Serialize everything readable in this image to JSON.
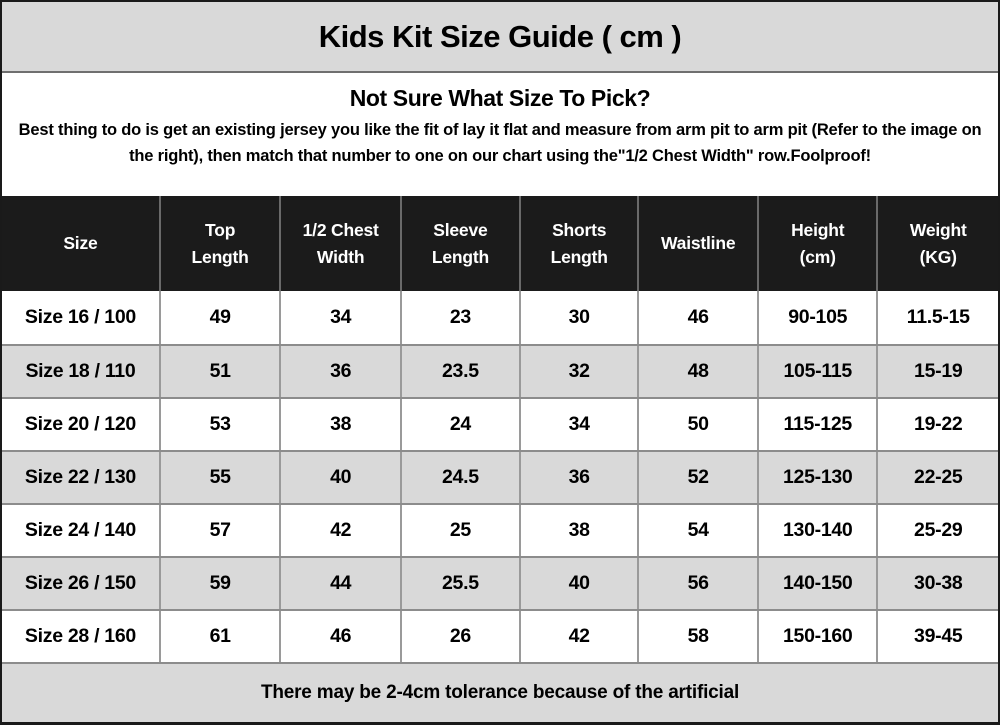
{
  "title_bar": {
    "title": "Kids Kit Size Guide ( cm )"
  },
  "intro": {
    "heading": "Not Sure What Size To Pick?",
    "body": "Best thing to do is get an existing jersey you like the fit of lay it flat and measure from arm pit to arm pit (Refer to the image on the right), then match that number to one on our chart using the\"1/2 Chest Width\" row.Foolproof!"
  },
  "table": {
    "columns": [
      "Size",
      "Top Length",
      "1/2 Chest Width",
      "Sleeve Length",
      "Shorts Length",
      "Waistline",
      "Height (cm)",
      "Weight (KG)"
    ],
    "rows": [
      [
        "Size 16 / 100",
        "49",
        "34",
        "23",
        "30",
        "46",
        "90-105",
        "11.5-15"
      ],
      [
        "Size 18 / 110",
        "51",
        "36",
        "23.5",
        "32",
        "48",
        "105-115",
        "15-19"
      ],
      [
        "Size 20 / 120",
        "53",
        "38",
        "24",
        "34",
        "50",
        "115-125",
        "19-22"
      ],
      [
        "Size 22 / 130",
        "55",
        "40",
        "24.5",
        "36",
        "52",
        "125-130",
        "22-25"
      ],
      [
        "Size 24 / 140",
        "57",
        "42",
        "25",
        "38",
        "54",
        "130-140",
        "25-29"
      ],
      [
        "Size 26 / 150",
        "59",
        "44",
        "25.5",
        "40",
        "56",
        "140-150",
        "30-38"
      ],
      [
        "Size 28 / 160",
        "61",
        "46",
        "26",
        "42",
        "58",
        "150-160",
        "39-45"
      ]
    ]
  },
  "footer": {
    "note": "There may be 2-4cm tolerance because of the artificial"
  },
  "colors": {
    "band_bg": "#d9d9d9",
    "header_bg": "#1b1b1b",
    "header_text": "#ffffff",
    "row_bg": "#ffffff",
    "row_alt_bg": "#d9d9d9",
    "separator_line": "#8c8c8c",
    "column_line_header": "#6a6a6a",
    "column_line_body": "#9a9a9a",
    "outer_border": "#1a1a1a"
  }
}
